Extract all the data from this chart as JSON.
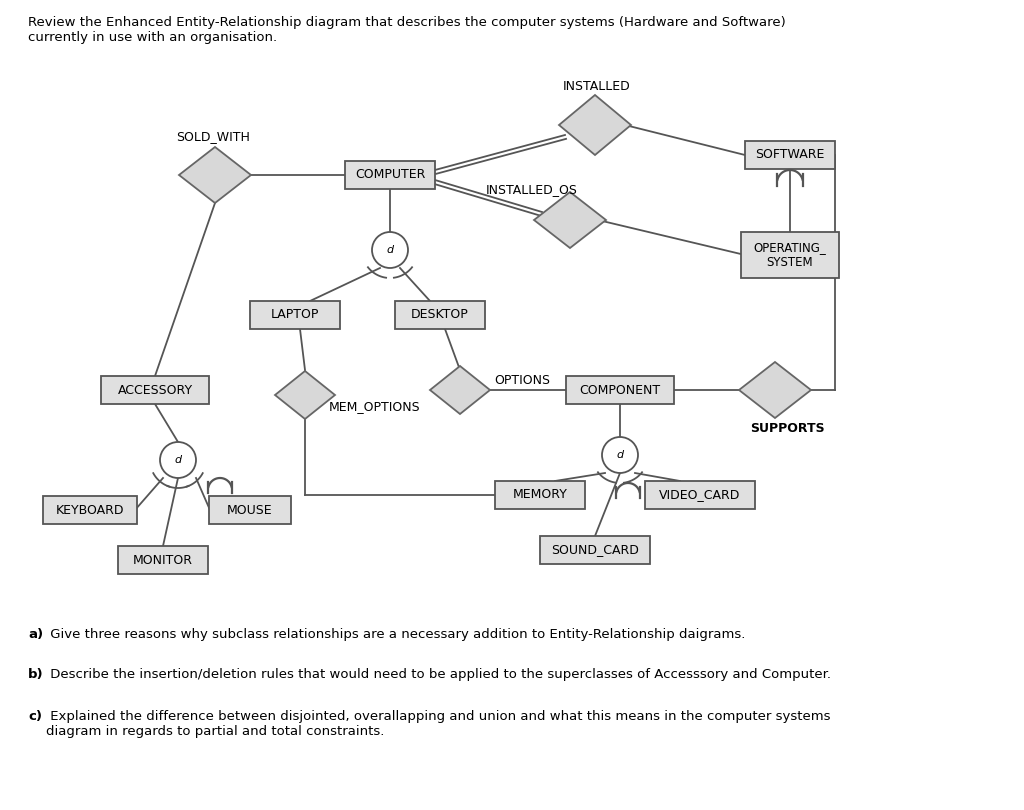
{
  "title_text": "Review the Enhanced Entity-Relationship diagram that describes the computer systems (Hardware and Software)\ncurrently in use with an organisation.",
  "question_a_bold": "a)",
  "question_a_rest": " Give three reasons why subclass relationships are a necessary addition to Entity-Relationship daigrams.",
  "question_b_bold": "b)",
  "question_b_rest": " Describe the insertion/deletion rules that would need to be applied to the superclasses of Accesssory and Computer.",
  "question_c_bold": "c)",
  "question_c_rest": " Explained the difference between disjointed, overallapping and union and what this means in the computer systems\ndiagram in regards to partial and total constraints.",
  "bg_color": "#ffffff",
  "entity_facecolor": "#e0e0e0",
  "entity_edgecolor": "#555555",
  "diamond_facecolor": "#d8d8d8",
  "diamond_edgecolor": "#666666",
  "line_color": "#555555",
  "text_color": "#000000",
  "circle_facecolor": "#ffffff",
  "circle_edgecolor": "#555555"
}
